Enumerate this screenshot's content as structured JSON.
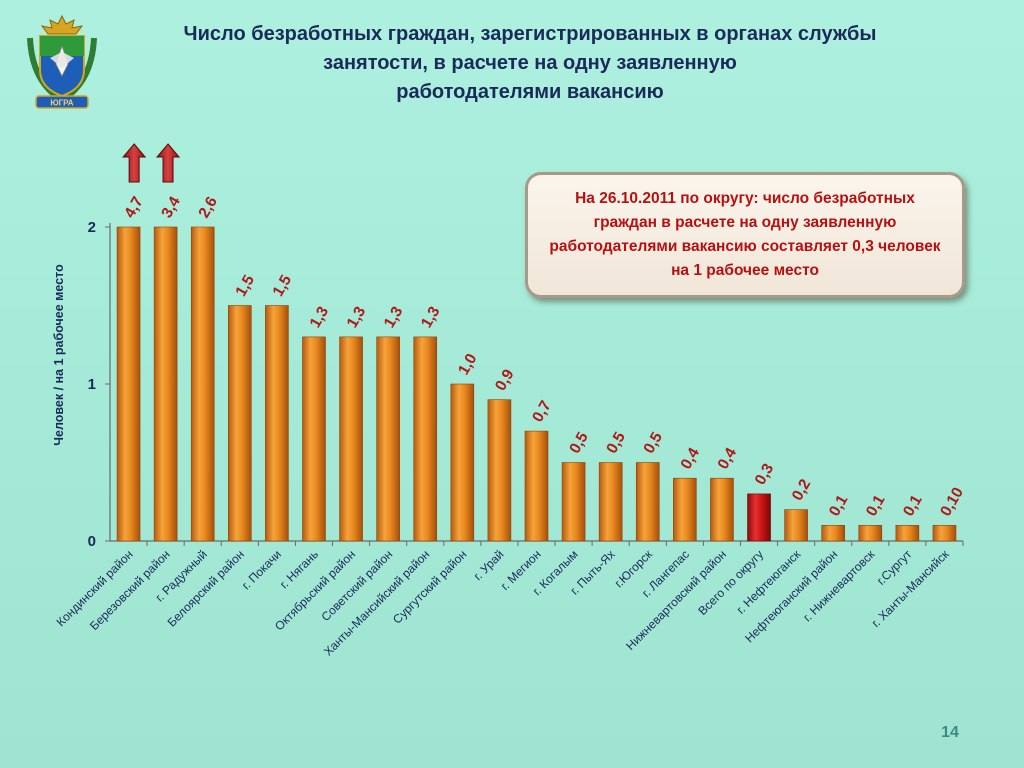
{
  "title": {
    "lines": [
      "Число безработных  граждан, зарегистрированных в органах службы",
      "занятости, в расчете на одну заявленную",
      "работодателями вакансию"
    ]
  },
  "info_box": {
    "text": "На 26.10.2011 по округу: число безработных граждан в расчете на одну заявленную работодателями вакансию составляет 0,3 человек на 1 рабочее место"
  },
  "page_number": "14",
  "emblem": {
    "icon": "coat-of-arms-icon",
    "text": "ЮГРА"
  },
  "colors": {
    "bar": "#e8891f",
    "bar_highlight": "#cc1616",
    "value_label": "#b01818",
    "axis_text": "#1a2a5a",
    "background": "#a6ead8"
  },
  "chart_data": {
    "type": "bar",
    "title": "",
    "xlabel": "",
    "ylabel": "Человек / на 1 рабочее место",
    "ylim": [
      0,
      2
    ],
    "yticks": [
      "0",
      "1",
      "2"
    ],
    "grid": false,
    "categories": [
      "Кондинский район",
      "Березовский район",
      "г. Радужный",
      "Белоярский район",
      "г. Покачи",
      "г. Нягань",
      "Октябрьский район",
      "Советский район",
      "Ханты-Мансийский район",
      "Сургутский район",
      "г. Урай",
      "г. Мегион",
      "г. Когалым",
      "г. Пыть-Ях",
      "г.Югорск",
      "г. Лангепас",
      "Нижневартовский район",
      "Всего по округу",
      "г. Нефтеюганск",
      "Нефтеюганский район",
      "г. Нижневартовск",
      "г.Сургут",
      "г. Ханты-Мансийск"
    ],
    "values": [
      4.7,
      3.4,
      2.6,
      1.5,
      1.5,
      1.3,
      1.3,
      1.3,
      1.3,
      1.0,
      0.9,
      0.7,
      0.5,
      0.5,
      0.5,
      0.4,
      0.4,
      0.3,
      0.2,
      0.1,
      0.1,
      0.1,
      0.1
    ],
    "value_labels": [
      "4,7",
      "3,4",
      "2,6",
      "1,5",
      "1,5",
      "1,3",
      "1,3",
      "1,3",
      "1,3",
      "1,0",
      "0,9",
      "0,7",
      "0,5",
      "0,5",
      "0,5",
      "0,4",
      "0,4",
      "0,3",
      "0,2",
      "0,1",
      "0,1",
      "0,1",
      "0,10"
    ],
    "highlighted": [
      "Всего по округу"
    ],
    "clipped_arrows": [
      "Кондинский район",
      "Березовский район"
    ]
  }
}
